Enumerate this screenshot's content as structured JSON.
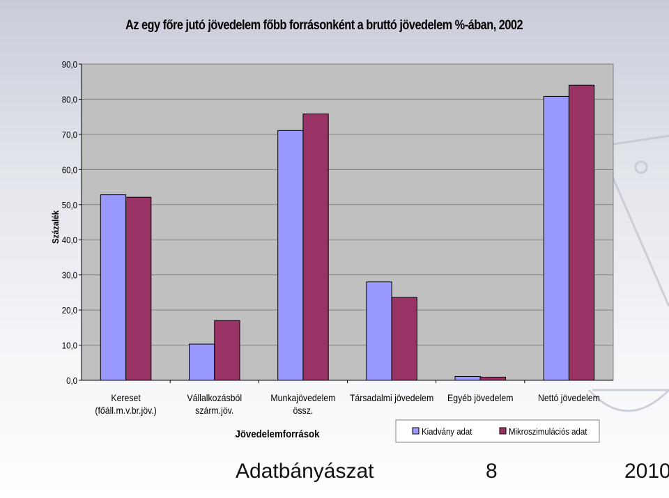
{
  "chart_data": {
    "type": "bar",
    "title": "Az egy főre jutó jövedelem főbb forrásonként a bruttó jövedelem %-ában, 2002",
    "xlabel": "Jövedelemforrások",
    "ylabel": "Százalék",
    "ylim": [
      0,
      90
    ],
    "ytick_step": 10,
    "ytick_labels": [
      "0,0",
      "10,0",
      "20,0",
      "30,0",
      "40,0",
      "50,0",
      "60,0",
      "70,0",
      "80,0",
      "90,0"
    ],
    "grid": true,
    "legend_position": "bottom-right",
    "categories": [
      [
        "Kereset",
        "(főáll.m.v.br.jöv.)"
      ],
      [
        "Vállalkozásból",
        "szárm.jöv."
      ],
      [
        "Munkajövedelem",
        "össz."
      ],
      [
        "Társadalmi jövedelem"
      ],
      [
        "Egyéb jövedelem"
      ],
      [
        "Nettó jövedelem"
      ]
    ],
    "series": [
      {
        "name": "Kiadvány adat",
        "color": "#9999ff",
        "values": [
          52.8,
          10.3,
          71.1,
          28.0,
          1.1,
          80.8
        ]
      },
      {
        "name": "Mikroszimulációs adat",
        "color": "#993366",
        "values": [
          52.1,
          17.0,
          75.8,
          23.6,
          0.9,
          84.0
        ]
      }
    ]
  },
  "footer": {
    "title": "Adatbányászat",
    "page": "8",
    "year": "2010"
  }
}
